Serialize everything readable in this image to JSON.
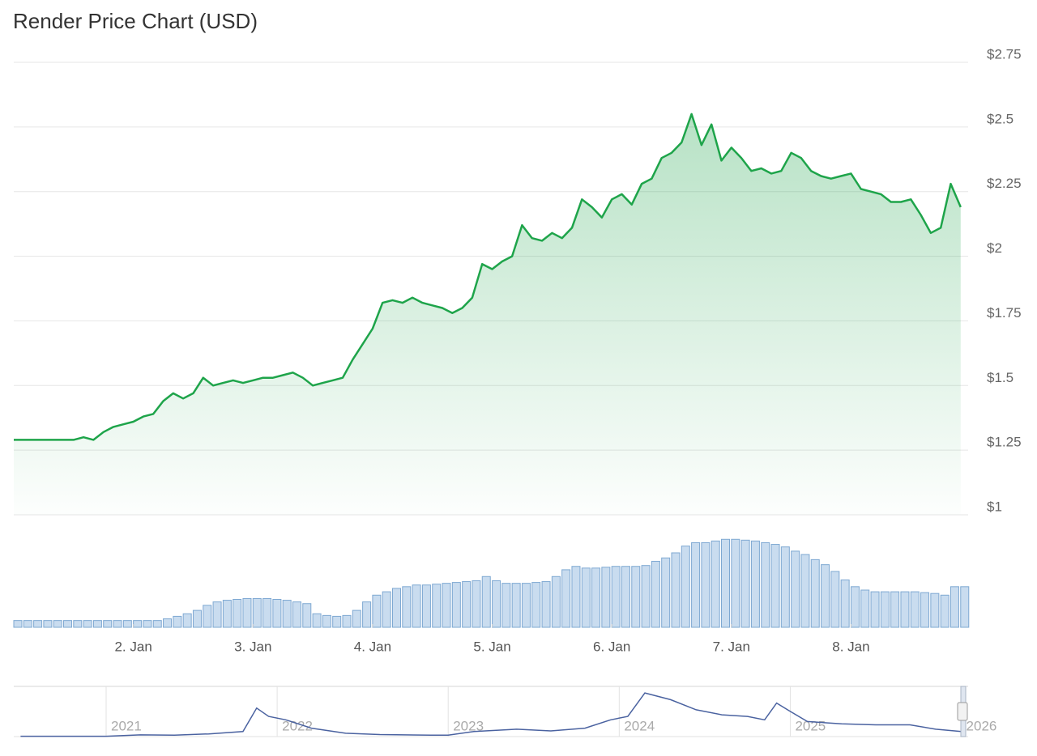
{
  "chart_data": {
    "type": "line",
    "title": "Render Price Chart (USD)",
    "color": "#1ea44a",
    "x": [
      0,
      2,
      4,
      6,
      8,
      10,
      12,
      14,
      16,
      18,
      20,
      22,
      24,
      26,
      28,
      30,
      32,
      34,
      36,
      38,
      40,
      42,
      44,
      46,
      48,
      50,
      52,
      54,
      56,
      58,
      60,
      62,
      64,
      66,
      68,
      70,
      72,
      74,
      76,
      78,
      80,
      82,
      84,
      86,
      88,
      90,
      92,
      94,
      96,
      98,
      100,
      102,
      104,
      106,
      108,
      110,
      112,
      114,
      116,
      118,
      120,
      122,
      124,
      126,
      128,
      130,
      132,
      134,
      136,
      138,
      140,
      142,
      144,
      146,
      148,
      150,
      152,
      154,
      156,
      158,
      160,
      162,
      164,
      166,
      168,
      170,
      172,
      174,
      176,
      178,
      180,
      182,
      184,
      186,
      188,
      190
    ],
    "values": [
      1.29,
      1.29,
      1.29,
      1.29,
      1.29,
      1.29,
      1.29,
      1.3,
      1.29,
      1.32,
      1.34,
      1.35,
      1.36,
      1.38,
      1.39,
      1.44,
      1.47,
      1.45,
      1.47,
      1.53,
      1.5,
      1.51,
      1.52,
      1.51,
      1.52,
      1.53,
      1.53,
      1.54,
      1.55,
      1.53,
      1.5,
      1.51,
      1.52,
      1.53,
      1.6,
      1.66,
      1.72,
      1.82,
      1.83,
      1.82,
      1.84,
      1.82,
      1.81,
      1.8,
      1.78,
      1.8,
      1.84,
      1.97,
      1.95,
      1.98,
      2.0,
      2.12,
      2.07,
      2.06,
      2.09,
      2.07,
      2.11,
      2.22,
      2.19,
      2.15,
      2.22,
      2.24,
      2.2,
      2.28,
      2.3,
      2.38,
      2.4,
      2.44,
      2.55,
      2.43,
      2.51,
      2.37,
      2.42,
      2.38,
      2.33,
      2.34,
      2.32,
      2.33,
      2.4,
      2.38,
      2.33,
      2.31,
      2.3,
      2.31,
      2.32,
      2.26,
      2.25,
      2.24,
      2.21,
      2.21,
      2.22,
      2.16,
      2.09,
      2.11,
      2.28,
      2.19
    ],
    "xlim": [
      0,
      191.5
    ],
    "xticks": [
      {
        "value": 24,
        "label": "2. Jan"
      },
      {
        "value": 48,
        "label": "3. Jan"
      },
      {
        "value": 72,
        "label": "4. Jan"
      },
      {
        "value": 96,
        "label": "5. Jan"
      },
      {
        "value": 120,
        "label": "6. Jan"
      },
      {
        "value": 144,
        "label": "7. Jan"
      },
      {
        "value": 168,
        "label": "8. Jan"
      }
    ],
    "ylim": [
      1,
      2.75
    ],
    "yticks": [
      {
        "value": 2.75,
        "label": "$2.75"
      },
      {
        "value": 2.5,
        "label": "$2.5"
      },
      {
        "value": 2.25,
        "label": "$2.25"
      },
      {
        "value": 2,
        "label": "$2"
      },
      {
        "value": 1.75,
        "label": "$1.75"
      },
      {
        "value": 1.5,
        "label": "$1.5"
      },
      {
        "value": 1.25,
        "label": "$1.25"
      },
      {
        "value": 1,
        "label": "$1"
      }
    ],
    "grid": true,
    "volume": {
      "color": "#c9dcef",
      "values": [
        8,
        8,
        8,
        8,
        8,
        8,
        8,
        8,
        8,
        8,
        8,
        8,
        8,
        8,
        8,
        10,
        13,
        16,
        20,
        26,
        30,
        32,
        33,
        34,
        34,
        34,
        33,
        32,
        30,
        28,
        16,
        14,
        13,
        14,
        20,
        30,
        38,
        42,
        46,
        48,
        50,
        50,
        51,
        52,
        53,
        54,
        55,
        60,
        55,
        52,
        52,
        52,
        53,
        54,
        60,
        68,
        72,
        70,
        70,
        71,
        72,
        72,
        72,
        73,
        78,
        82,
        88,
        96,
        100,
        100,
        102,
        104,
        104,
        103,
        102,
        100,
        98,
        95,
        90,
        86,
        80,
        74,
        66,
        56,
        48,
        44,
        42,
        42,
        42,
        42,
        42,
        41,
        40,
        38,
        48,
        48
      ],
      "ylim": [
        0,
        110
      ]
    },
    "navigator": {
      "color": "#4a62a0",
      "x": [
        2020.5,
        2020.75,
        2021.0,
        2021.2,
        2021.4,
        2021.6,
        2021.8,
        2021.88,
        2021.95,
        2022.05,
        2022.2,
        2022.4,
        2022.6,
        2022.9,
        2023.0,
        2023.15,
        2023.4,
        2023.6,
        2023.8,
        2023.95,
        2024.05,
        2024.15,
        2024.3,
        2024.45,
        2024.6,
        2024.75,
        2024.85,
        2024.92,
        2025.0,
        2025.1,
        2025.3,
        2025.5,
        2025.7,
        2025.85,
        2026.0
      ],
      "values": [
        0.1,
        0.1,
        0.1,
        0.5,
        0.4,
        0.8,
        1.5,
        8.5,
        6,
        5,
        2.5,
        1,
        0.6,
        0.4,
        0.4,
        1.5,
        2.2,
        1.7,
        2.5,
        5,
        6,
        13,
        11,
        8,
        6.5,
        6,
        5,
        10,
        7.5,
        4.5,
        3.8,
        3.5,
        3.5,
        2.2,
        1.5
      ],
      "xlim": [
        2020.46,
        2026.04
      ],
      "ylim": [
        0,
        14
      ],
      "xticks": [
        2021,
        2022,
        2023,
        2024,
        2025,
        2026
      ]
    }
  }
}
